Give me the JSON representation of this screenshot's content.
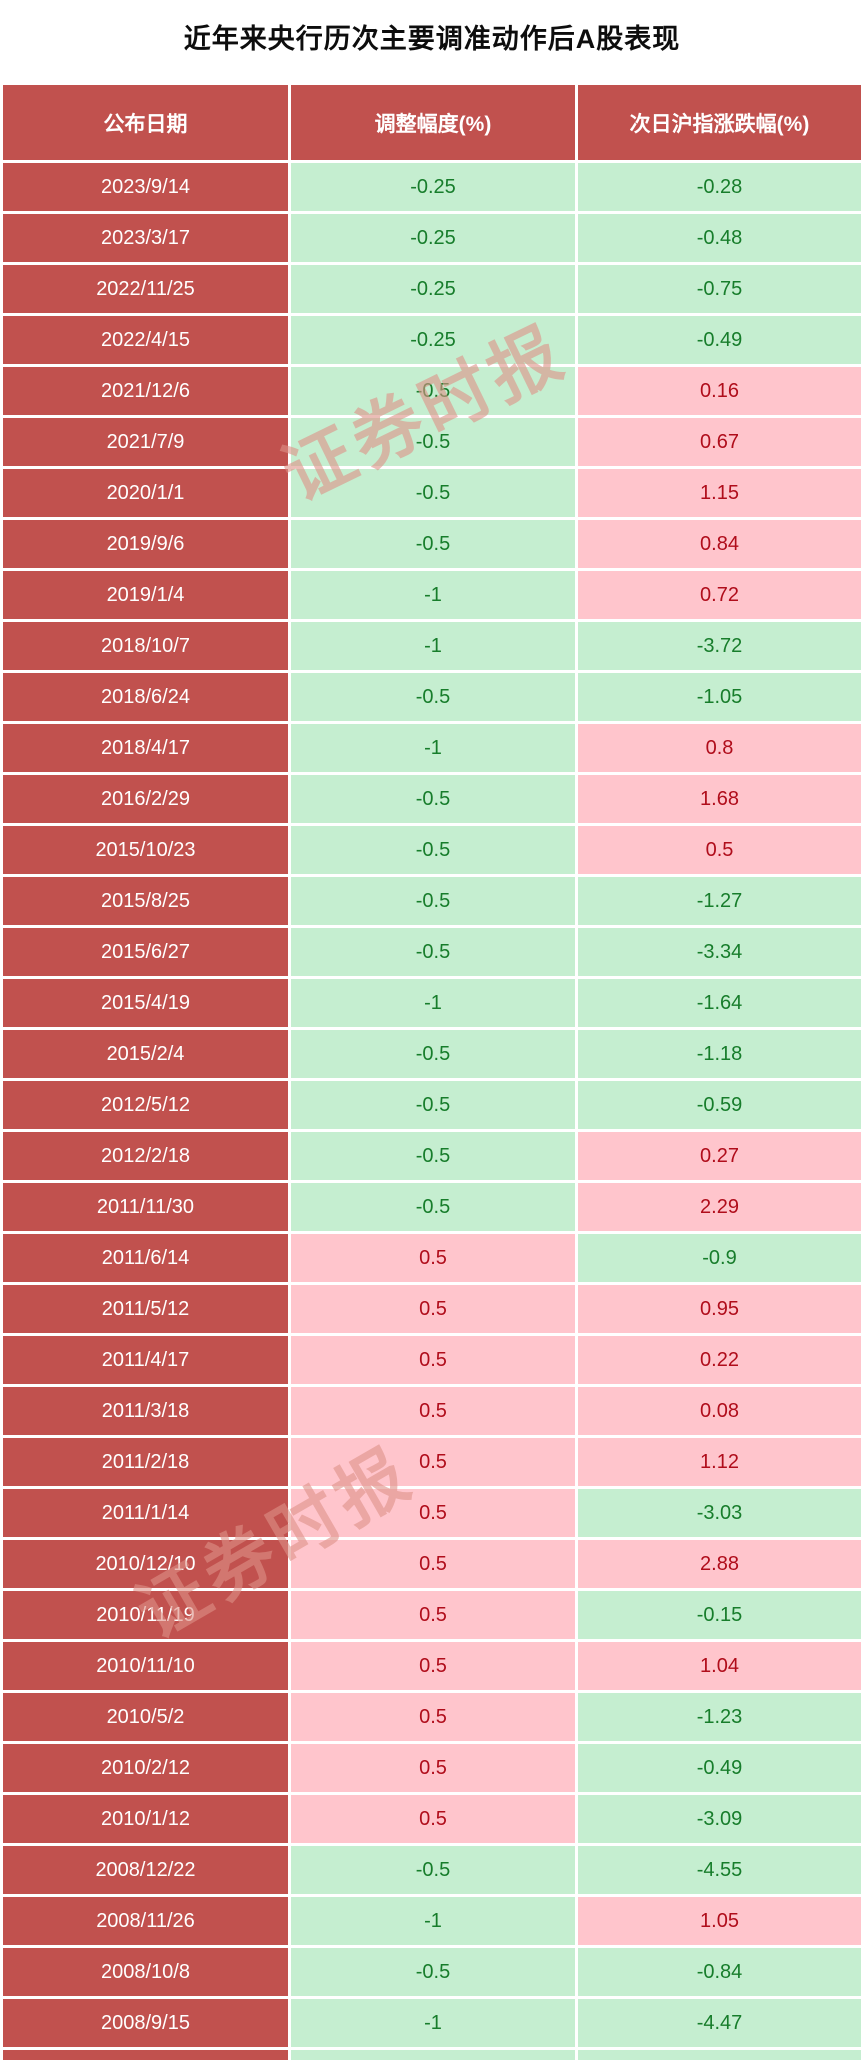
{
  "title": "近年来央行历次主要调准动作后A股表现",
  "watermark_text": "证券时报",
  "colors": {
    "header_bg": "#c1514e",
    "date_bg": "#c1514e",
    "header_text": "#ffffff",
    "negative_bg": "#c5eed0",
    "negative_text": "#177d2b",
    "positive_bg": "#ffc5cc",
    "positive_text": "#b00d1b"
  },
  "chart_data": {
    "type": "table",
    "title": "近年来央行历次主要调准动作后A股表现",
    "columns": [
      "公布日期",
      "调整幅度(%)",
      "次日沪指涨跌幅(%)"
    ],
    "color_rule": "negative values on light-green, positive values on light-pink",
    "rows": [
      [
        "2023/9/14",
        -0.25,
        -0.28
      ],
      [
        "2023/3/17",
        -0.25,
        -0.48
      ],
      [
        "2022/11/25",
        -0.25,
        -0.75
      ],
      [
        "2022/4/15",
        -0.25,
        -0.49
      ],
      [
        "2021/12/6",
        -0.5,
        0.16
      ],
      [
        "2021/7/9",
        -0.5,
        0.67
      ],
      [
        "2020/1/1",
        -0.5,
        1.15
      ],
      [
        "2019/9/6",
        -0.5,
        0.84
      ],
      [
        "2019/1/4",
        -1,
        0.72
      ],
      [
        "2018/10/7",
        -1,
        -3.72
      ],
      [
        "2018/6/24",
        -0.5,
        -1.05
      ],
      [
        "2018/4/17",
        -1,
        0.8
      ],
      [
        "2016/2/29",
        -0.5,
        1.68
      ],
      [
        "2015/10/23",
        -0.5,
        0.5
      ],
      [
        "2015/8/25",
        -0.5,
        -1.27
      ],
      [
        "2015/6/27",
        -0.5,
        -3.34
      ],
      [
        "2015/4/19",
        -1,
        -1.64
      ],
      [
        "2015/2/4",
        -0.5,
        -1.18
      ],
      [
        "2012/5/12",
        -0.5,
        -0.59
      ],
      [
        "2012/2/18",
        -0.5,
        0.27
      ],
      [
        "2011/11/30",
        -0.5,
        2.29
      ],
      [
        "2011/6/14",
        0.5,
        -0.9
      ],
      [
        "2011/5/12",
        0.5,
        0.95
      ],
      [
        "2011/4/17",
        0.5,
        0.22
      ],
      [
        "2011/3/18",
        0.5,
        0.08
      ],
      [
        "2011/2/18",
        0.5,
        1.12
      ],
      [
        "2011/1/14",
        0.5,
        -3.03
      ],
      [
        "2010/12/10",
        0.5,
        2.88
      ],
      [
        "2010/11/19",
        0.5,
        -0.15
      ],
      [
        "2010/11/10",
        0.5,
        1.04
      ],
      [
        "2010/5/2",
        0.5,
        -1.23
      ],
      [
        "2010/2/12",
        0.5,
        -0.49
      ],
      [
        "2010/1/12",
        0.5,
        -3.09
      ],
      [
        "2008/12/22",
        -0.5,
        -4.55
      ],
      [
        "2008/11/26",
        -1,
        1.05
      ],
      [
        "2008/10/8",
        -0.5,
        -0.84
      ],
      [
        "2008/9/15",
        -1,
        -4.47
      ]
    ]
  }
}
